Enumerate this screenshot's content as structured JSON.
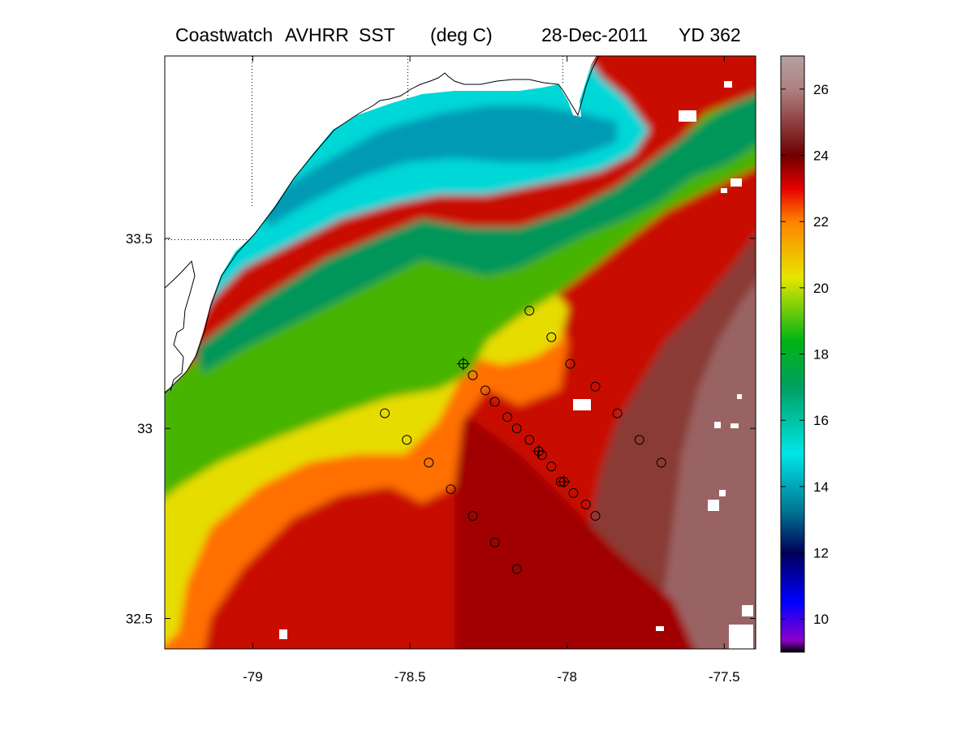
{
  "title": {
    "product": "Coastwatch",
    "sensor": "AVHRR",
    "variable": "SST",
    "units": "(deg C)",
    "date": "28-Dec-2011",
    "yearday": "YD 362"
  },
  "map": {
    "lon_range": [
      -79.28,
      -77.4
    ],
    "lat_range": [
      32.42,
      33.98
    ],
    "x_ticks": [
      {
        "value": -79,
        "label": "-79"
      },
      {
        "value": -78.5,
        "label": "-78.5"
      },
      {
        "value": -78,
        "label": "-78"
      },
      {
        "value": -77.5,
        "label": "-77.5"
      }
    ],
    "y_ticks": [
      {
        "value": 33.5,
        "label": "33.5"
      },
      {
        "value": 33,
        "label": "33"
      },
      {
        "value": 32.5,
        "label": "32.5"
      }
    ],
    "gridlines": "dotted, land only",
    "stations": [
      {
        "lon": -78.33,
        "lat": 33.17,
        "type": "cross"
      },
      {
        "lon": -78.3,
        "lat": 33.14
      },
      {
        "lon": -78.26,
        "lat": 33.1
      },
      {
        "lon": -78.23,
        "lat": 33.07
      },
      {
        "lon": -78.19,
        "lat": 33.03
      },
      {
        "lon": -78.16,
        "lat": 33.0
      },
      {
        "lon": -78.12,
        "lat": 32.97
      },
      {
        "lon": -78.09,
        "lat": 32.94,
        "type": "cross"
      },
      {
        "lon": -78.08,
        "lat": 32.93
      },
      {
        "lon": -78.05,
        "lat": 32.9
      },
      {
        "lon": -78.02,
        "lat": 32.86
      },
      {
        "lon": -78.01,
        "lat": 32.86,
        "type": "cross"
      },
      {
        "lon": -77.98,
        "lat": 32.83
      },
      {
        "lon": -77.94,
        "lat": 32.8
      },
      {
        "lon": -77.91,
        "lat": 32.77
      },
      {
        "lon": -78.12,
        "lat": 33.31
      },
      {
        "lon": -78.05,
        "lat": 33.24
      },
      {
        "lon": -77.99,
        "lat": 33.17
      },
      {
        "lon": -77.91,
        "lat": 33.11
      },
      {
        "lon": -77.84,
        "lat": 33.04
      },
      {
        "lon": -77.77,
        "lat": 32.97
      },
      {
        "lon": -77.7,
        "lat": 32.91
      },
      {
        "lon": -78.58,
        "lat": 33.04
      },
      {
        "lon": -78.51,
        "lat": 32.97
      },
      {
        "lon": -78.44,
        "lat": 32.91
      },
      {
        "lon": -78.37,
        "lat": 32.84
      },
      {
        "lon": -78.3,
        "lat": 32.77
      },
      {
        "lon": -78.23,
        "lat": 32.7
      },
      {
        "lon": -78.16,
        "lat": 32.63
      }
    ]
  },
  "colorbar": {
    "range": [
      9,
      27
    ],
    "ticks": [
      {
        "value": 10,
        "label": "10"
      },
      {
        "value": 12,
        "label": "12"
      },
      {
        "value": 14,
        "label": "14"
      },
      {
        "value": 16,
        "label": "16"
      },
      {
        "value": 18,
        "label": "18"
      },
      {
        "value": 20,
        "label": "20"
      },
      {
        "value": 22,
        "label": "22"
      },
      {
        "value": 24,
        "label": "24"
      },
      {
        "value": 26,
        "label": "26"
      }
    ],
    "stops": [
      {
        "value": 9,
        "color": "#000000"
      },
      {
        "value": 9.35,
        "color": "#8c00c8"
      },
      {
        "value": 10.5,
        "color": "#0000ff"
      },
      {
        "value": 12,
        "color": "#00005a"
      },
      {
        "value": 13.3,
        "color": "#007896"
      },
      {
        "value": 15,
        "color": "#00e6e6"
      },
      {
        "value": 17,
        "color": "#00a060"
      },
      {
        "value": 18.4,
        "color": "#00b414"
      },
      {
        "value": 20.3,
        "color": "#e6e600"
      },
      {
        "value": 22,
        "color": "#ff8200"
      },
      {
        "value": 23,
        "color": "#e60000"
      },
      {
        "value": 24,
        "color": "#6e0000"
      },
      {
        "value": 26,
        "color": "#b08080"
      },
      {
        "value": 27,
        "color": "#b4a0a0"
      }
    ]
  }
}
